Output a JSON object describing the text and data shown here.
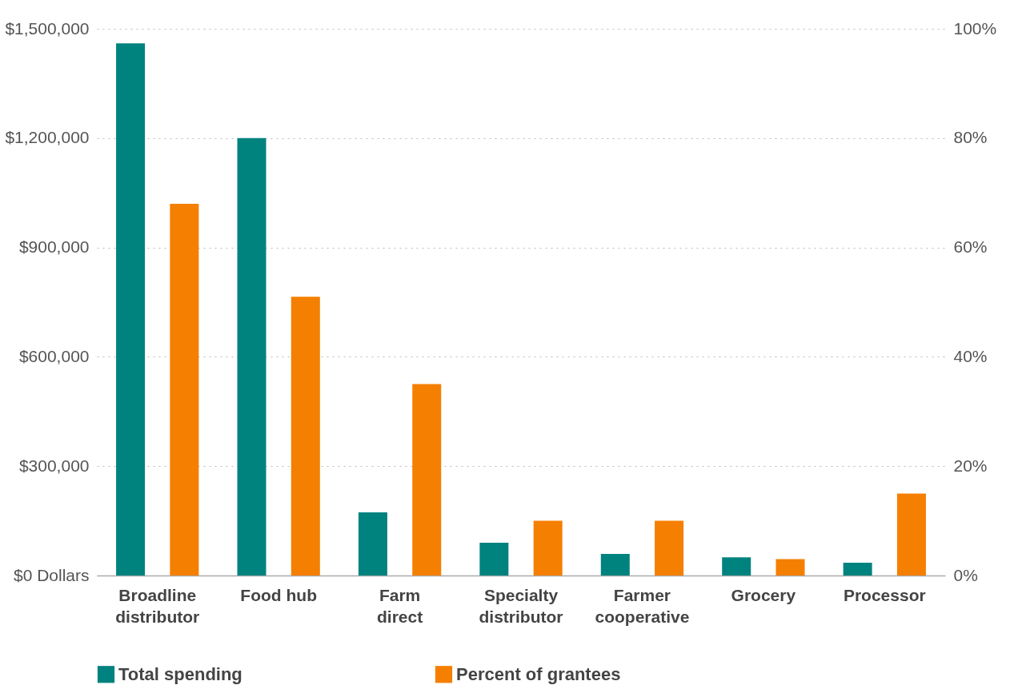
{
  "chart_data": {
    "type": "bar",
    "categories": [
      "Broadline distributor",
      "Food hub",
      "Farm direct",
      "Specialty distributor",
      "Farmer cooperative",
      "Grocery",
      "Processor"
    ],
    "series": [
      {
        "name": "Total spending",
        "color": "#00827f",
        "values": [
          1460000,
          1200000,
          173000,
          90000,
          59000,
          50000,
          35000
        ]
      },
      {
        "name": "Percent of grantees",
        "color": "#f57f00",
        "axis": "y2",
        "values": [
          68,
          51,
          35,
          10,
          10,
          3,
          15
        ]
      }
    ],
    "ylim": [
      0,
      1500000
    ],
    "yticks": [
      {
        "value": 0,
        "label": "$0 Dollars"
      },
      {
        "value": 300000,
        "label": "$300,000"
      },
      {
        "value": 600000,
        "label": "$600,000"
      },
      {
        "value": 900000,
        "label": "$900,000"
      },
      {
        "value": 1200000,
        "label": "$1,200,000"
      },
      {
        "value": 1500000,
        "label": "$1,500,000"
      }
    ],
    "y2lim": [
      0,
      100
    ],
    "y2ticks": [
      {
        "value": 0,
        "label": "0%"
      },
      {
        "value": 20,
        "label": "20%"
      },
      {
        "value": 40,
        "label": "40%"
      },
      {
        "value": 60,
        "label": "60%"
      },
      {
        "value": 80,
        "label": "80%"
      },
      {
        "value": 100,
        "label": "100%"
      }
    ],
    "grid": "y",
    "legend": "bottom"
  }
}
